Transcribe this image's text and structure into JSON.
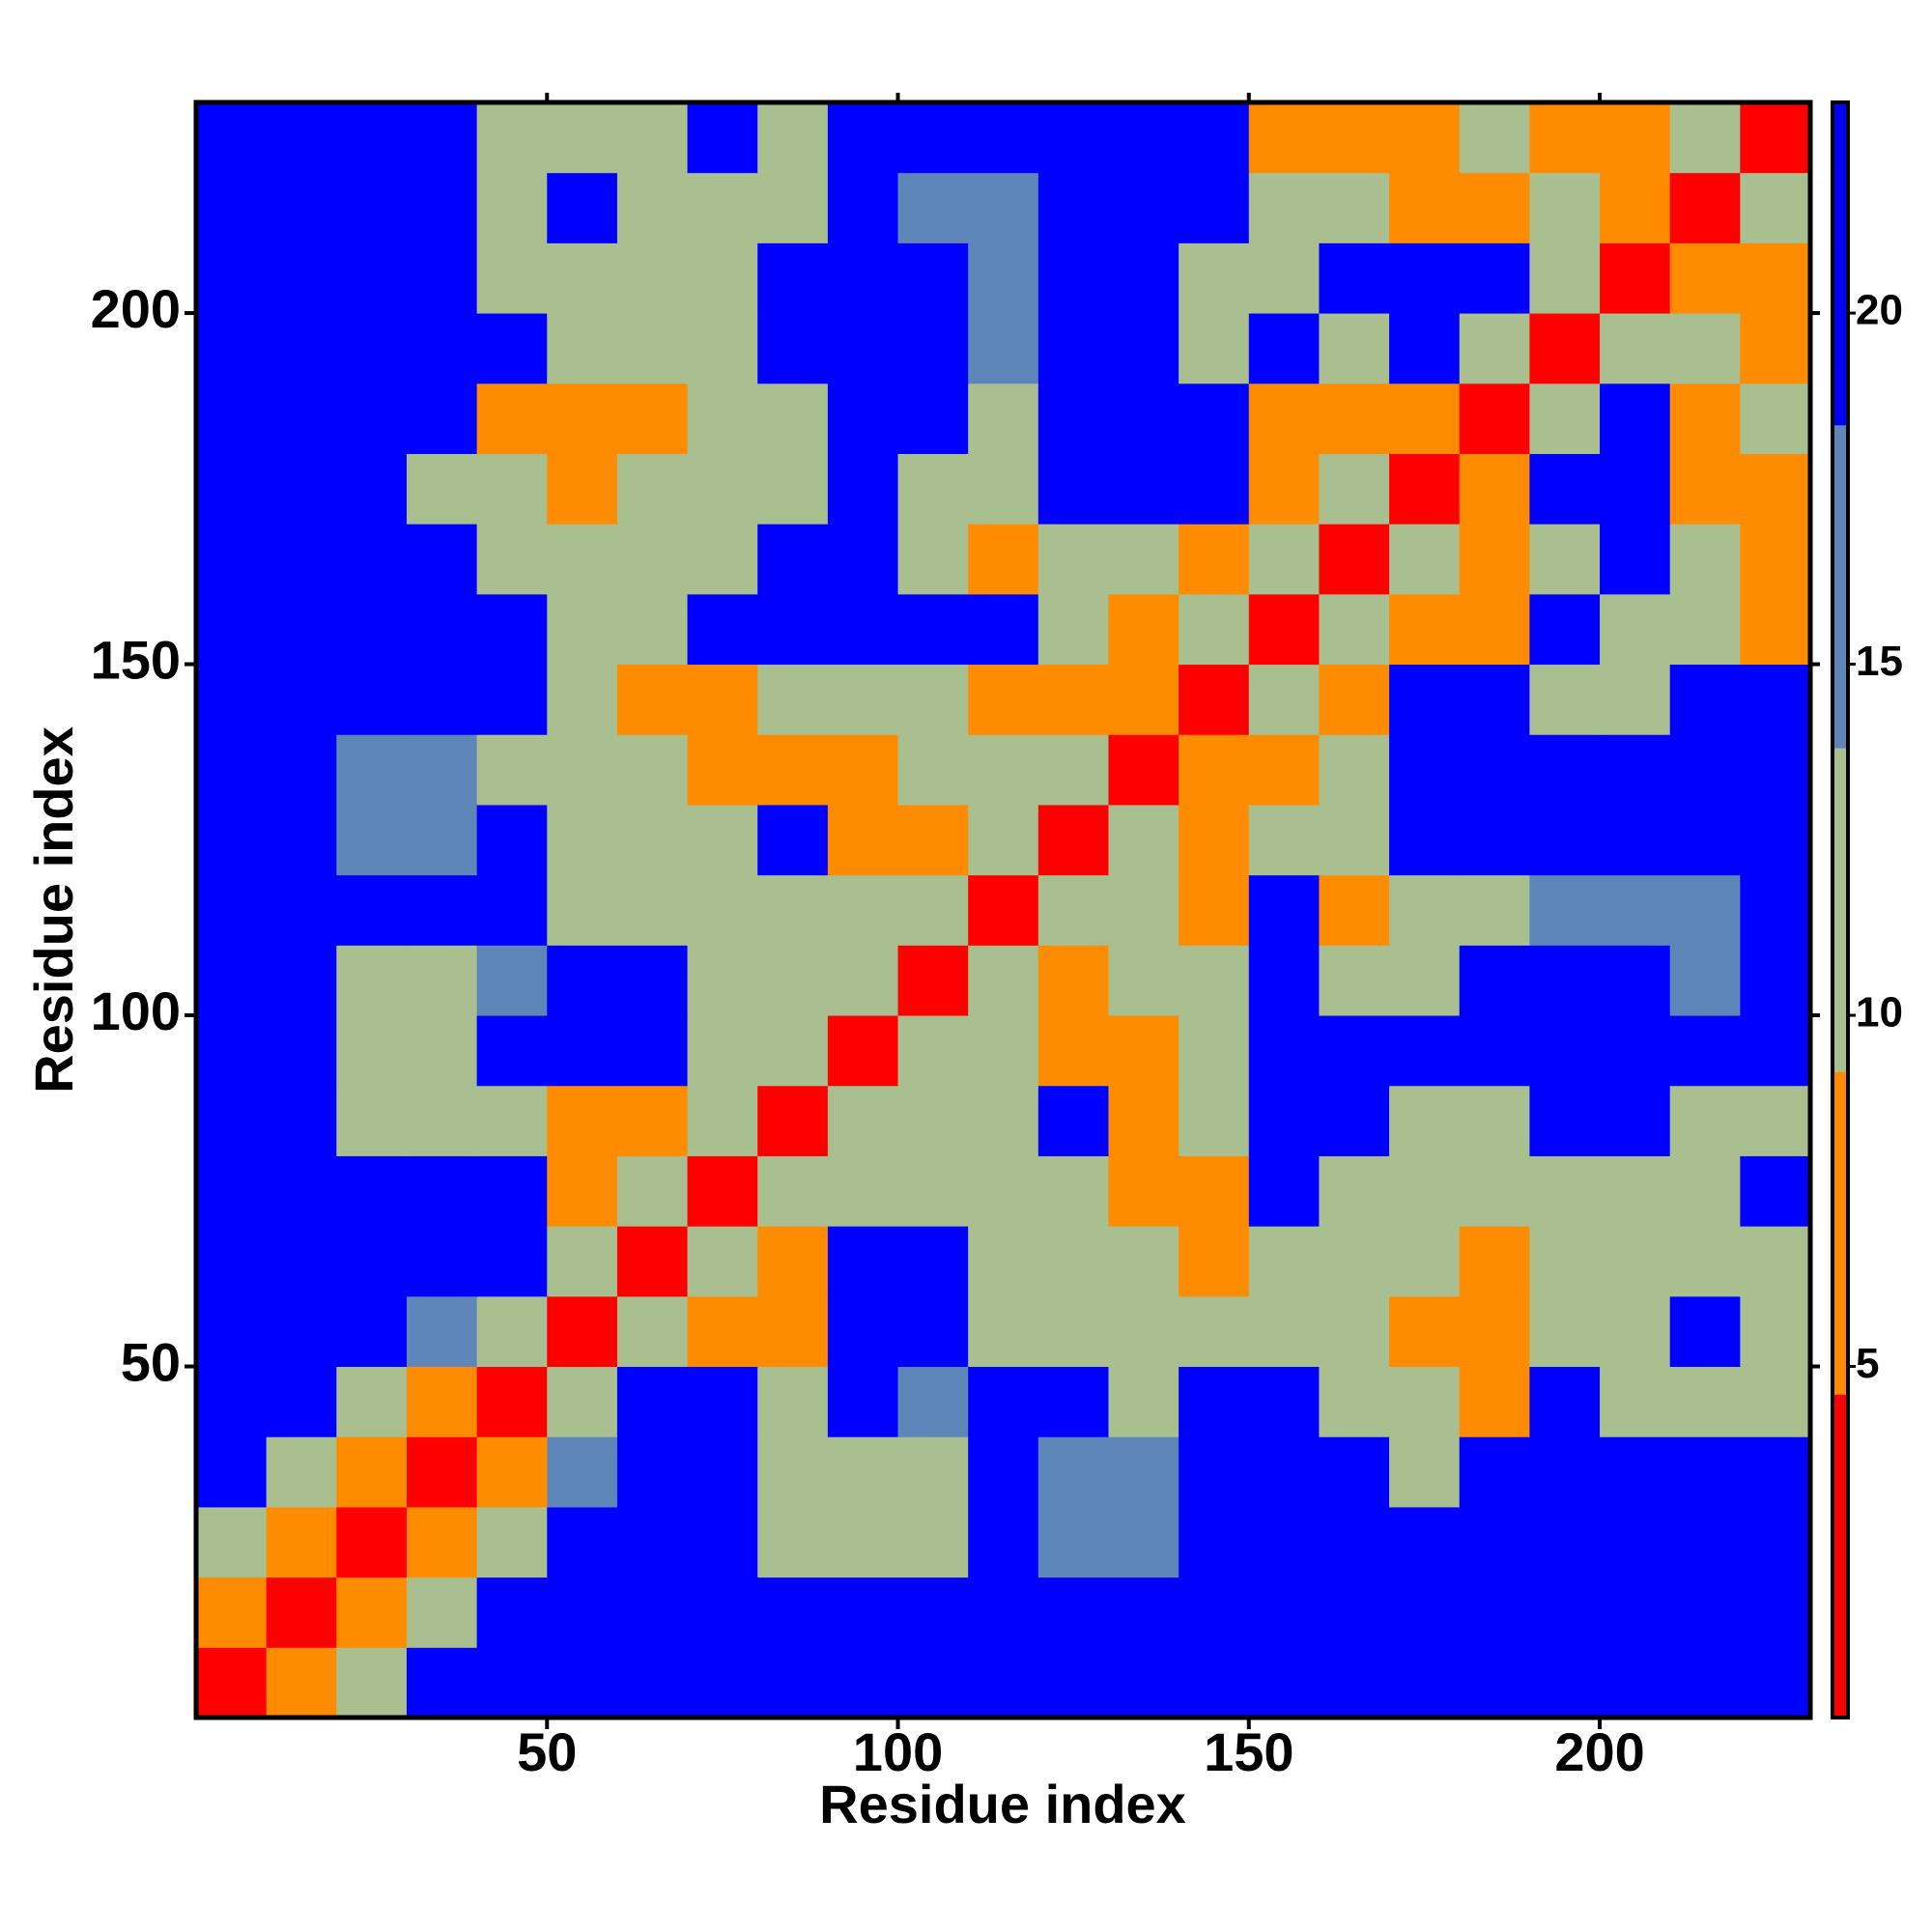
{
  "chart_data": {
    "type": "heatmap",
    "xlabel": "Residue index",
    "ylabel": "Residue index",
    "x": [
      5,
      15,
      25,
      35,
      45,
      55,
      65,
      75,
      85,
      95,
      105,
      115,
      125,
      135,
      145,
      155,
      165,
      175,
      185,
      195,
      205,
      215,
      225
    ],
    "y": [
      5,
      15,
      25,
      35,
      45,
      55,
      65,
      75,
      85,
      95,
      105,
      115,
      125,
      135,
      145,
      155,
      165,
      175,
      185,
      195,
      205,
      215,
      225
    ],
    "xlim": [
      0,
      230
    ],
    "ylim": [
      0,
      230
    ],
    "xticks": [
      50,
      100,
      150,
      200
    ],
    "yticks": [
      50,
      100,
      150,
      200
    ],
    "clim": [
      0,
      23
    ],
    "cticks": [
      5,
      10,
      15,
      20
    ],
    "colors": [
      "#ff0000",
      "#ff8c00",
      "#a9bf8f",
      "#5f86b8",
      "#0000ff"
    ],
    "values": [
      [
        4,
        8,
        11,
        21,
        21,
        21,
        21,
        21,
        21,
        21,
        21,
        21,
        21,
        21,
        21,
        21,
        21,
        21,
        21,
        21,
        21,
        21,
        21
      ],
      [
        8,
        4,
        8,
        12,
        21,
        21,
        21,
        21,
        21,
        21,
        21,
        21,
        21,
        21,
        21,
        21,
        21,
        21,
        21,
        21,
        21,
        21,
        21
      ],
      [
        11,
        8,
        4,
        9,
        13,
        21,
        21,
        21,
        11,
        11,
        12,
        21,
        15,
        15,
        21,
        21,
        21,
        21,
        21,
        21,
        21,
        21,
        21
      ],
      [
        21,
        12,
        9,
        4,
        9,
        14,
        21,
        21,
        11,
        13,
        11,
        21,
        14,
        14,
        21,
        21,
        21,
        13,
        21,
        21,
        21,
        21,
        21
      ],
      [
        21,
        21,
        13,
        9,
        4,
        10,
        21,
        21,
        10,
        21,
        14,
        21,
        21,
        11,
        21,
        21,
        13,
        11,
        8,
        21,
        12,
        11,
        10
      ],
      [
        21,
        21,
        21,
        14,
        10,
        4,
        11,
        7,
        8,
        21,
        21,
        12,
        11,
        11,
        10,
        12,
        11,
        8,
        9,
        10,
        11,
        21,
        10
      ],
      [
        21,
        21,
        21,
        21,
        21,
        11,
        4,
        11,
        9,
        21,
        21,
        13,
        12,
        12,
        7,
        12,
        11,
        12,
        8,
        10,
        11,
        12,
        11
      ],
      [
        21,
        21,
        21,
        21,
        21,
        7,
        11,
        4,
        11,
        12,
        11,
        11,
        11,
        8,
        9,
        21,
        11,
        11,
        10,
        11,
        12,
        12,
        21
      ],
      [
        21,
        21,
        11,
        11,
        10,
        8,
        9,
        11,
        4,
        11,
        11,
        11,
        21,
        7,
        11,
        21,
        21,
        11,
        11,
        21,
        21,
        12,
        12
      ],
      [
        21,
        21,
        11,
        13,
        21,
        21,
        21,
        12,
        11,
        4,
        11,
        10,
        8,
        8,
        12,
        21,
        21,
        21,
        21,
        21,
        21,
        21,
        21
      ],
      [
        21,
        21,
        12,
        11,
        14,
        21,
        21,
        11,
        11,
        11,
        4,
        11,
        9,
        11,
        11,
        21,
        13,
        10,
        21,
        21,
        21,
        15,
        21
      ],
      [
        21,
        21,
        21,
        21,
        21,
        12,
        13,
        11,
        11,
        10,
        11,
        4,
        11,
        11,
        7,
        21,
        8,
        11,
        13,
        14,
        15,
        15,
        21
      ],
      [
        21,
        21,
        15,
        14,
        21,
        11,
        12,
        11,
        21,
        8,
        9,
        11,
        4,
        11,
        8,
        10,
        12,
        21,
        21,
        21,
        21,
        21,
        21
      ],
      [
        21,
        21,
        15,
        14,
        11,
        11,
        12,
        8,
        7,
        8,
        11,
        11,
        11,
        4,
        7,
        9,
        11,
        21,
        21,
        21,
        21,
        21,
        21
      ],
      [
        21,
        21,
        21,
        21,
        21,
        10,
        7,
        9,
        11,
        12,
        11,
        7,
        8,
        7,
        4,
        11,
        8,
        21,
        21,
        13,
        12,
        21,
        21
      ],
      [
        21,
        21,
        21,
        21,
        21,
        12,
        12,
        21,
        21,
        21,
        21,
        21,
        10,
        9,
        11,
        4,
        11,
        9,
        8,
        21,
        11,
        12,
        9
      ],
      [
        21,
        21,
        21,
        21,
        13,
        11,
        11,
        11,
        21,
        21,
        13,
        8,
        12,
        11,
        8,
        11,
        4,
        11,
        7,
        11,
        21,
        11,
        8
      ],
      [
        21,
        21,
        21,
        13,
        11,
        8,
        12,
        11,
        11,
        21,
        10,
        11,
        21,
        21,
        21,
        9,
        11,
        4,
        7,
        21,
        21,
        7,
        8
      ],
      [
        21,
        21,
        21,
        21,
        8,
        9,
        8,
        10,
        11,
        21,
        21,
        13,
        21,
        21,
        21,
        8,
        7,
        7,
        4,
        11,
        21,
        9,
        11
      ],
      [
        21,
        21,
        21,
        21,
        21,
        10,
        10,
        11,
        21,
        21,
        21,
        14,
        21,
        21,
        13,
        21,
        11,
        21,
        11,
        4,
        11,
        11,
        8
      ],
      [
        21,
        21,
        21,
        21,
        12,
        11,
        11,
        12,
        21,
        21,
        21,
        15,
        21,
        21,
        12,
        11,
        21,
        21,
        21,
        11,
        4,
        8,
        9
      ],
      [
        21,
        21,
        21,
        21,
        11,
        21,
        12,
        12,
        12,
        21,
        15,
        15,
        21,
        21,
        21,
        12,
        11,
        7,
        9,
        11,
        8,
        4,
        11
      ],
      [
        21,
        21,
        21,
        21,
        10,
        10,
        11,
        21,
        12,
        21,
        21,
        21,
        21,
        21,
        21,
        9,
        8,
        8,
        11,
        8,
        9,
        11,
        4
      ]
    ]
  }
}
